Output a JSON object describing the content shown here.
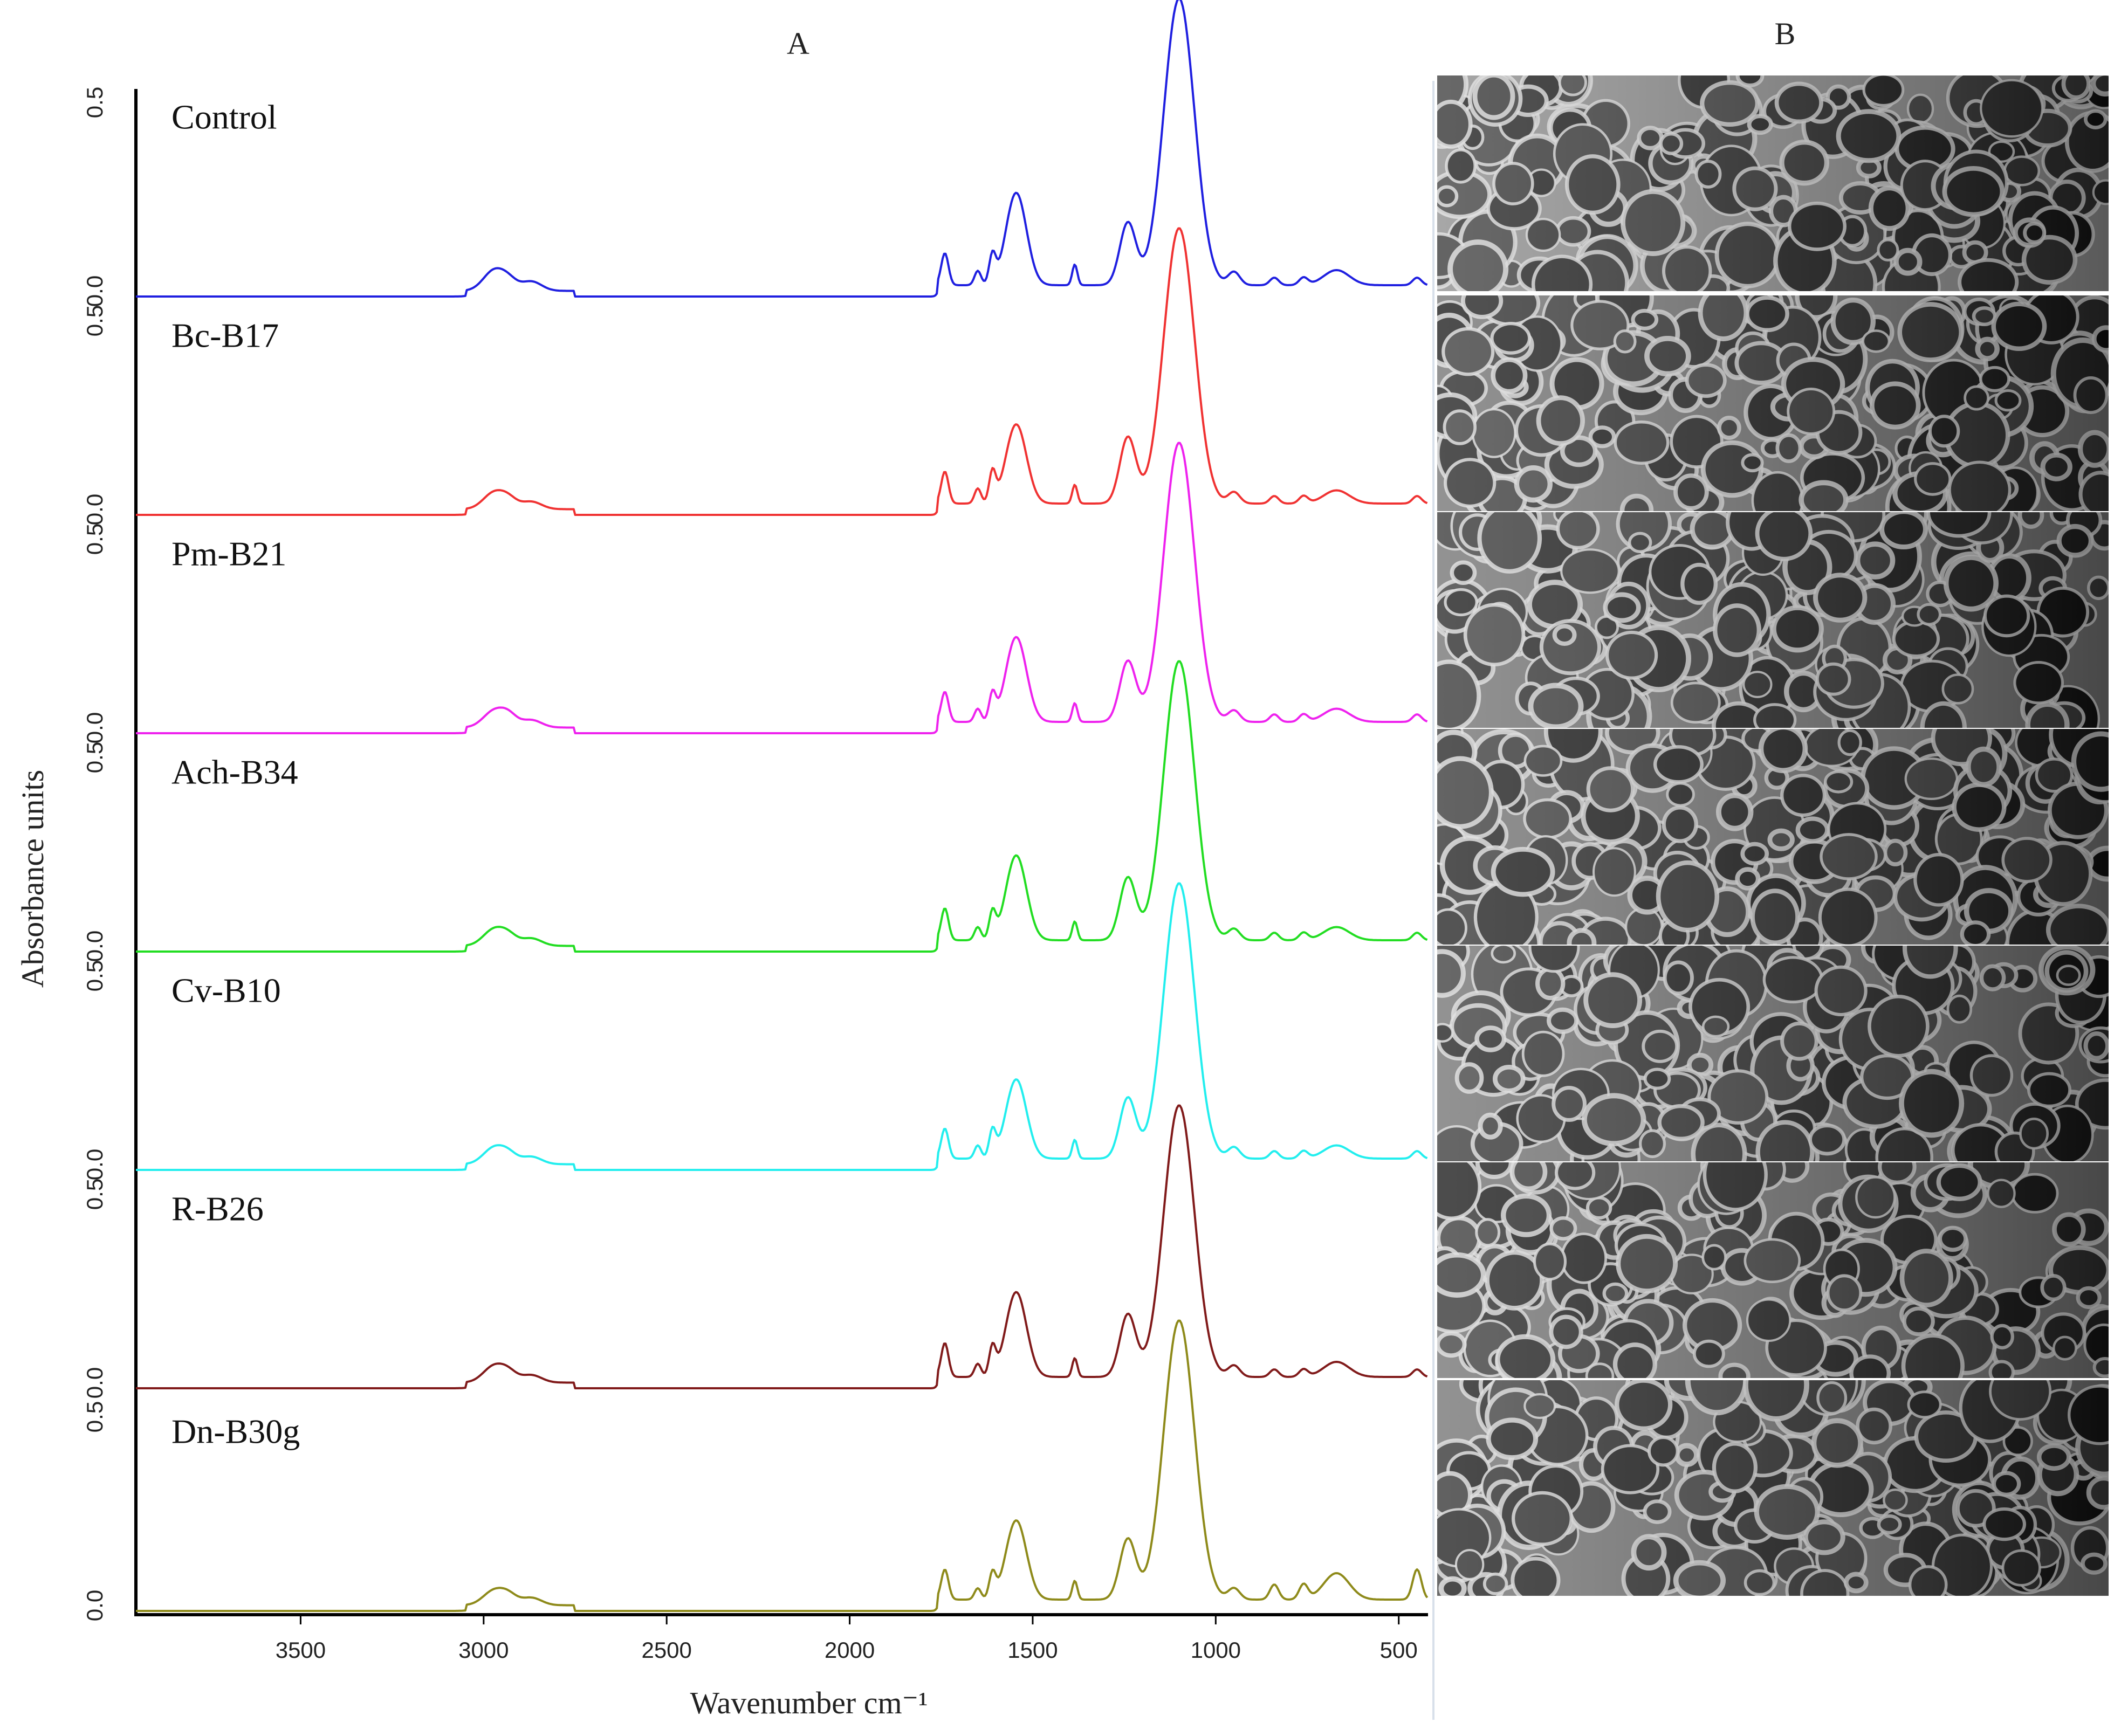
{
  "panel_a_label": "A",
  "panel_b_label": "B",
  "chart_data": {
    "type": "line",
    "title": "",
    "xlabel": "Wavenumber cm⁻¹",
    "ylabel": "Absorbance units",
    "xlim": [
      3950,
      420
    ],
    "xticks": [
      3500,
      3000,
      2500,
      2000,
      1500,
      1000,
      500
    ],
    "ylim_per_panel": [
      0,
      0.55
    ],
    "yticks": [
      0.0,
      0.5
    ],
    "ytick_labels": [
      "0.0",
      "0.5"
    ],
    "peaks_wavenumber": [
      3300,
      2970,
      2930,
      2870,
      1740,
      1650,
      1610,
      1545,
      1385,
      1240,
      1100,
      950,
      840,
      760,
      670,
      450
    ],
    "series": [
      {
        "name": "Control",
        "color": "#1f1fe0",
        "values": [
          0.0,
          0.055,
          0.02,
          0.025,
          0.085,
          0.038,
          0.075,
          0.245,
          0.055,
          0.165,
          0.76,
          0.035,
          0.02,
          0.02,
          0.04,
          0.02
        ]
      },
      {
        "name": "Bc-B17",
        "color": "#f03232",
        "values": [
          0.0,
          0.045,
          0.02,
          0.02,
          0.085,
          0.04,
          0.08,
          0.21,
          0.05,
          0.175,
          0.73,
          0.03,
          0.02,
          0.02,
          0.035,
          0.02
        ]
      },
      {
        "name": "Pm-B21",
        "color": "#ee22ee",
        "values": [
          0.0,
          0.045,
          0.025,
          0.02,
          0.08,
          0.035,
          0.07,
          0.225,
          0.05,
          0.16,
          0.74,
          0.03,
          0.02,
          0.02,
          0.035,
          0.02
        ]
      },
      {
        "name": "Ach-B34",
        "color": "#22dd22",
        "values": [
          0.0,
          0.045,
          0.02,
          0.02,
          0.085,
          0.035,
          0.07,
          0.225,
          0.05,
          0.165,
          0.74,
          0.03,
          0.02,
          0.02,
          0.035,
          0.02
        ]
      },
      {
        "name": "Cv-B10",
        "color": "#22eeee",
        "values": [
          0.0,
          0.045,
          0.02,
          0.02,
          0.08,
          0.035,
          0.07,
          0.21,
          0.05,
          0.16,
          0.73,
          0.03,
          0.02,
          0.02,
          0.035,
          0.02
        ]
      },
      {
        "name": "R-B26",
        "color": "#801a1a",
        "values": [
          0.0,
          0.045,
          0.02,
          0.02,
          0.09,
          0.035,
          0.075,
          0.225,
          0.05,
          0.165,
          0.72,
          0.03,
          0.02,
          0.02,
          0.04,
          0.02
        ]
      },
      {
        "name": "Dn-B30g",
        "color": "#8e8a1a",
        "values": [
          0.0,
          0.04,
          0.02,
          0.02,
          0.08,
          0.03,
          0.065,
          0.21,
          0.05,
          0.16,
          0.74,
          0.03,
          0.04,
          0.04,
          0.07,
          0.08
        ]
      }
    ]
  }
}
